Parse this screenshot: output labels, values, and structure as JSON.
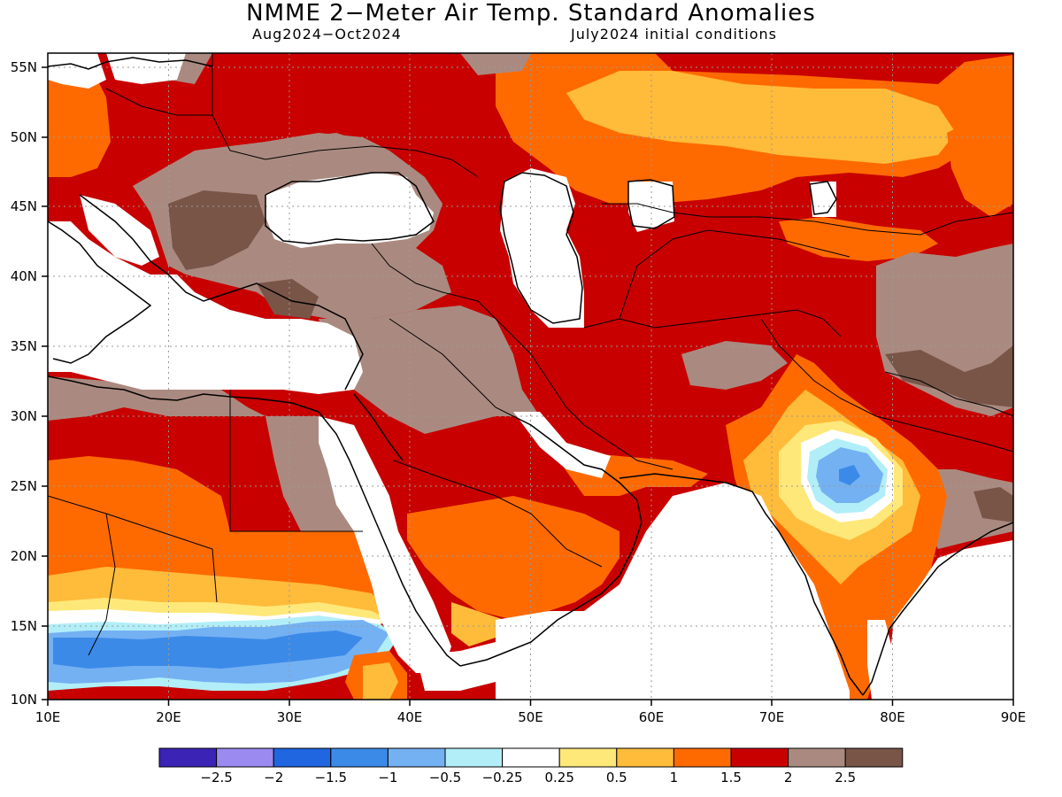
{
  "title": "NMME 2−Meter Air Temp. Standard Anomalies",
  "subtitle_left": "Aug2024−Oct2024",
  "subtitle_right": "July2024 initial conditions",
  "lat_labels": [
    "55N",
    "50N",
    "45N",
    "40N",
    "35N",
    "30N",
    "25N",
    "20N",
    "15N",
    "10N"
  ],
  "lon_labels": [
    "10E",
    "20E",
    "30E",
    "40E",
    "50E",
    "60E",
    "70E",
    "80E",
    "90E"
  ],
  "legend": {
    "colors": [
      "#3a23b5",
      "#9b8af0",
      "#1f66e0",
      "#3c8ae8",
      "#74b1f2",
      "#b2eef8",
      "#ffffff",
      "#ffe87a",
      "#ffbb3a",
      "#ff6a00",
      "#c80000",
      "#aa8a80",
      "#795548"
    ],
    "labels": [
      "−2.5",
      "−2",
      "−1.5",
      "−1",
      "−0.5",
      "−0.25",
      "0.25",
      "0.5",
      "1",
      "1.5",
      "2",
      "2.5"
    ]
  },
  "palette": {
    "white": "#ffffff",
    "pale_blue": "#b2eef8",
    "light_blue": "#74b1f2",
    "mid_blue": "#3c8ae8",
    "yellow": "#ffe87a",
    "light_orange": "#ffbb3a",
    "orange": "#ff6a00",
    "red": "#c80000",
    "tan": "#aa8a80",
    "brown": "#795548"
  }
}
